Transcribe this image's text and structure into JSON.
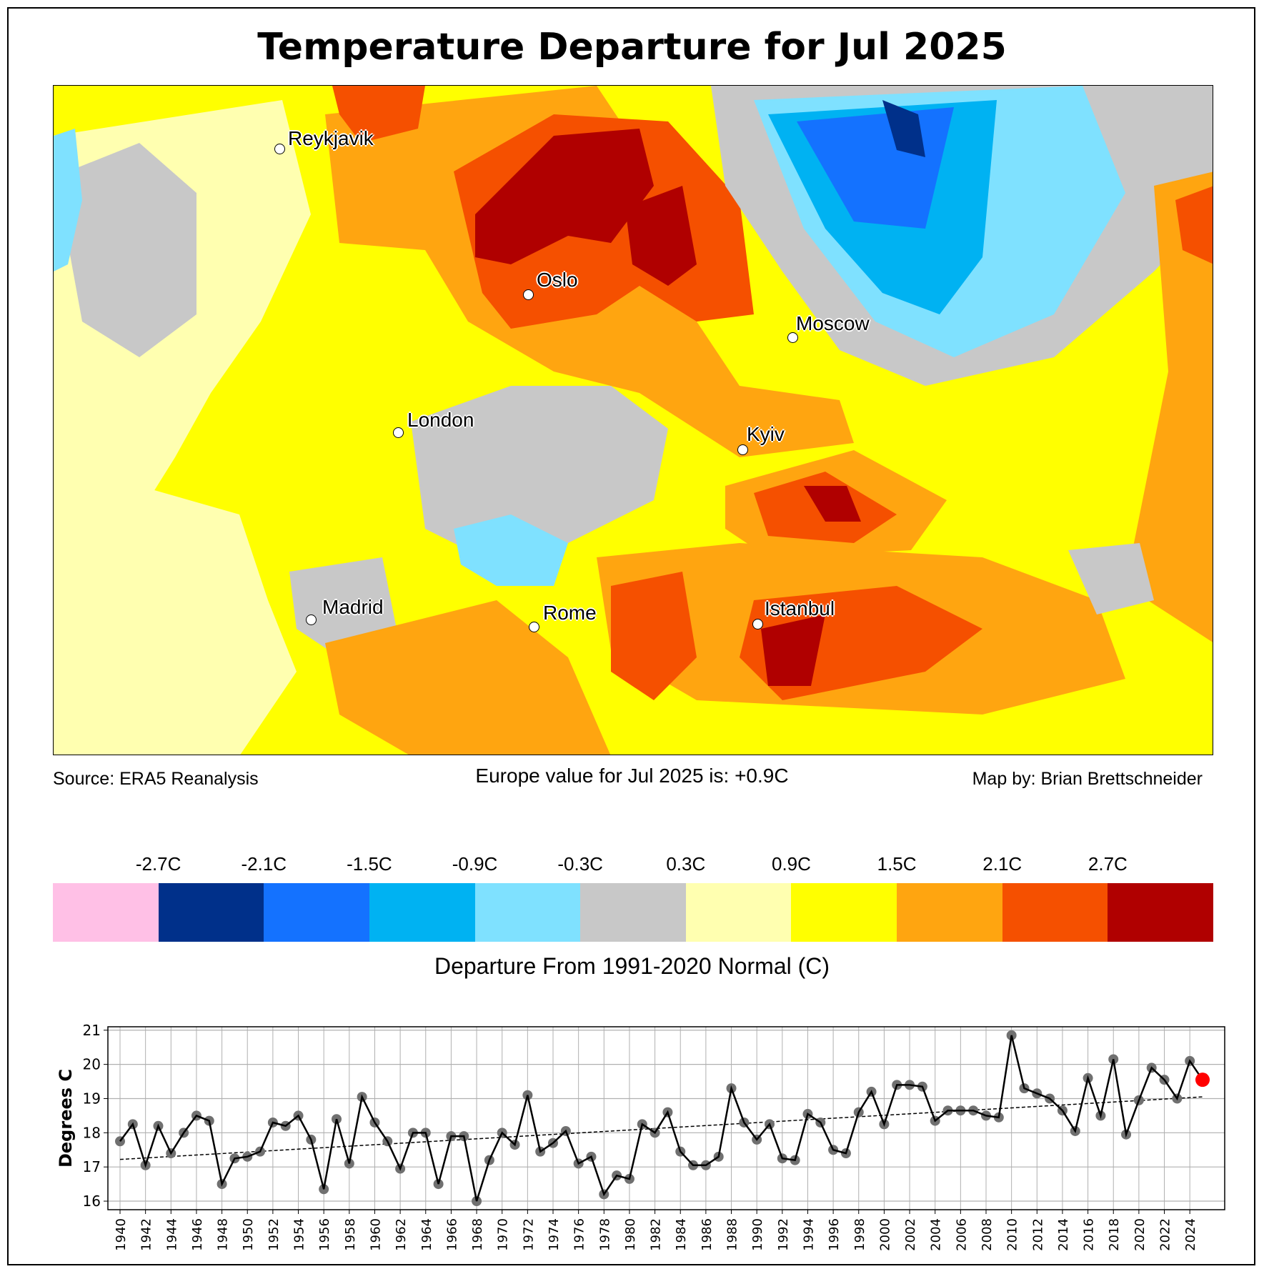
{
  "title": "Temperature Departure for Jul 2025",
  "map": {
    "cities": [
      "Reykjavik",
      "Oslo",
      "Moscow",
      "London",
      "Kyiv",
      "Madrid",
      "Rome",
      "Istanbul"
    ],
    "contour_labels": [
      "2.1",
      "1.5",
      "0.9",
      "0.3",
      "-0.3",
      "-0.9",
      "-1.5",
      "2.7"
    ]
  },
  "footer": {
    "source": "Source: ERA5 Reanalysis",
    "summary": "Europe value for Jul 2025 is: +0.9C",
    "credit": "Map by: Brian Brettschneider"
  },
  "colorbar": {
    "labels": [
      "-2.7C",
      "-2.1C",
      "-1.5C",
      "-0.9C",
      "-0.3C",
      "0.3C",
      "0.9C",
      "1.5C",
      "2.1C",
      "2.7C"
    ],
    "colors": [
      "#ffc0e6",
      "#00308a",
      "#1472ff",
      "#00b2f2",
      "#7fe1ff",
      "#c8c8c8",
      "#ffffb0",
      "#ffff00",
      "#ffa510",
      "#f55000",
      "#b00000"
    ],
    "title": "Departure From 1991-2020 Normal (C)"
  },
  "chart_data": {
    "type": "line",
    "ylabel": "Degrees C",
    "xlabel": "",
    "ylim": [
      15.75,
      21.1
    ],
    "yticks": [
      16,
      17,
      18,
      19,
      20,
      21
    ],
    "xticks": [
      1940,
      1942,
      1944,
      1946,
      1948,
      1950,
      1952,
      1954,
      1956,
      1958,
      1960,
      1962,
      1964,
      1966,
      1968,
      1970,
      1972,
      1974,
      1976,
      1978,
      1980,
      1982,
      1984,
      1986,
      1988,
      1990,
      1992,
      1994,
      1996,
      1998,
      2000,
      2002,
      2004,
      2006,
      2008,
      2010,
      2012,
      2014,
      2016,
      2018,
      2020,
      2022,
      2024
    ],
    "grid": true,
    "x": [
      1940,
      1941,
      1942,
      1943,
      1944,
      1945,
      1946,
      1947,
      1948,
      1949,
      1950,
      1951,
      1952,
      1953,
      1954,
      1955,
      1956,
      1957,
      1958,
      1959,
      1960,
      1961,
      1962,
      1963,
      1964,
      1965,
      1966,
      1967,
      1968,
      1969,
      1970,
      1971,
      1972,
      1973,
      1974,
      1975,
      1976,
      1977,
      1978,
      1979,
      1980,
      1981,
      1982,
      1983,
      1984,
      1985,
      1986,
      1987,
      1988,
      1989,
      1990,
      1991,
      1992,
      1993,
      1994,
      1995,
      1996,
      1997,
      1998,
      1999,
      2000,
      2001,
      2002,
      2003,
      2004,
      2005,
      2006,
      2007,
      2008,
      2009,
      2010,
      2011,
      2012,
      2013,
      2014,
      2015,
      2016,
      2017,
      2018,
      2019,
      2020,
      2021,
      2022,
      2023,
      2024,
      2025
    ],
    "values": [
      17.75,
      18.25,
      17.05,
      18.2,
      17.4,
      18.0,
      18.5,
      18.35,
      16.5,
      17.25,
      17.3,
      17.45,
      18.3,
      18.2,
      18.5,
      17.8,
      16.35,
      18.4,
      17.1,
      19.05,
      18.3,
      17.75,
      16.95,
      18.0,
      18.0,
      16.5,
      17.9,
      17.9,
      16.0,
      17.2,
      18.0,
      17.65,
      19.1,
      17.45,
      17.7,
      18.05,
      17.1,
      17.3,
      16.2,
      16.75,
      16.65,
      18.25,
      18.0,
      18.6,
      17.45,
      17.05,
      17.05,
      17.3,
      19.3,
      18.3,
      17.8,
      18.25,
      17.25,
      17.2,
      18.55,
      18.3,
      17.5,
      17.4,
      18.6,
      19.2,
      18.25,
      19.4,
      19.4,
      19.35,
      18.35,
      18.65,
      18.65,
      18.65,
      18.5,
      18.45,
      20.85,
      19.3,
      19.15,
      19.0,
      18.65,
      18.05,
      19.6,
      18.5,
      20.15,
      17.95,
      18.95,
      19.9,
      19.55,
      19.0,
      20.1,
      19.55
    ],
    "trend": {
      "x": [
        1940,
        2025
      ],
      "y": [
        17.22,
        19.05
      ],
      "style": "dashed"
    },
    "highlight": {
      "year": 2025,
      "color": "#ff0000"
    },
    "marker_color": "#707070",
    "line_color": "#000000"
  }
}
